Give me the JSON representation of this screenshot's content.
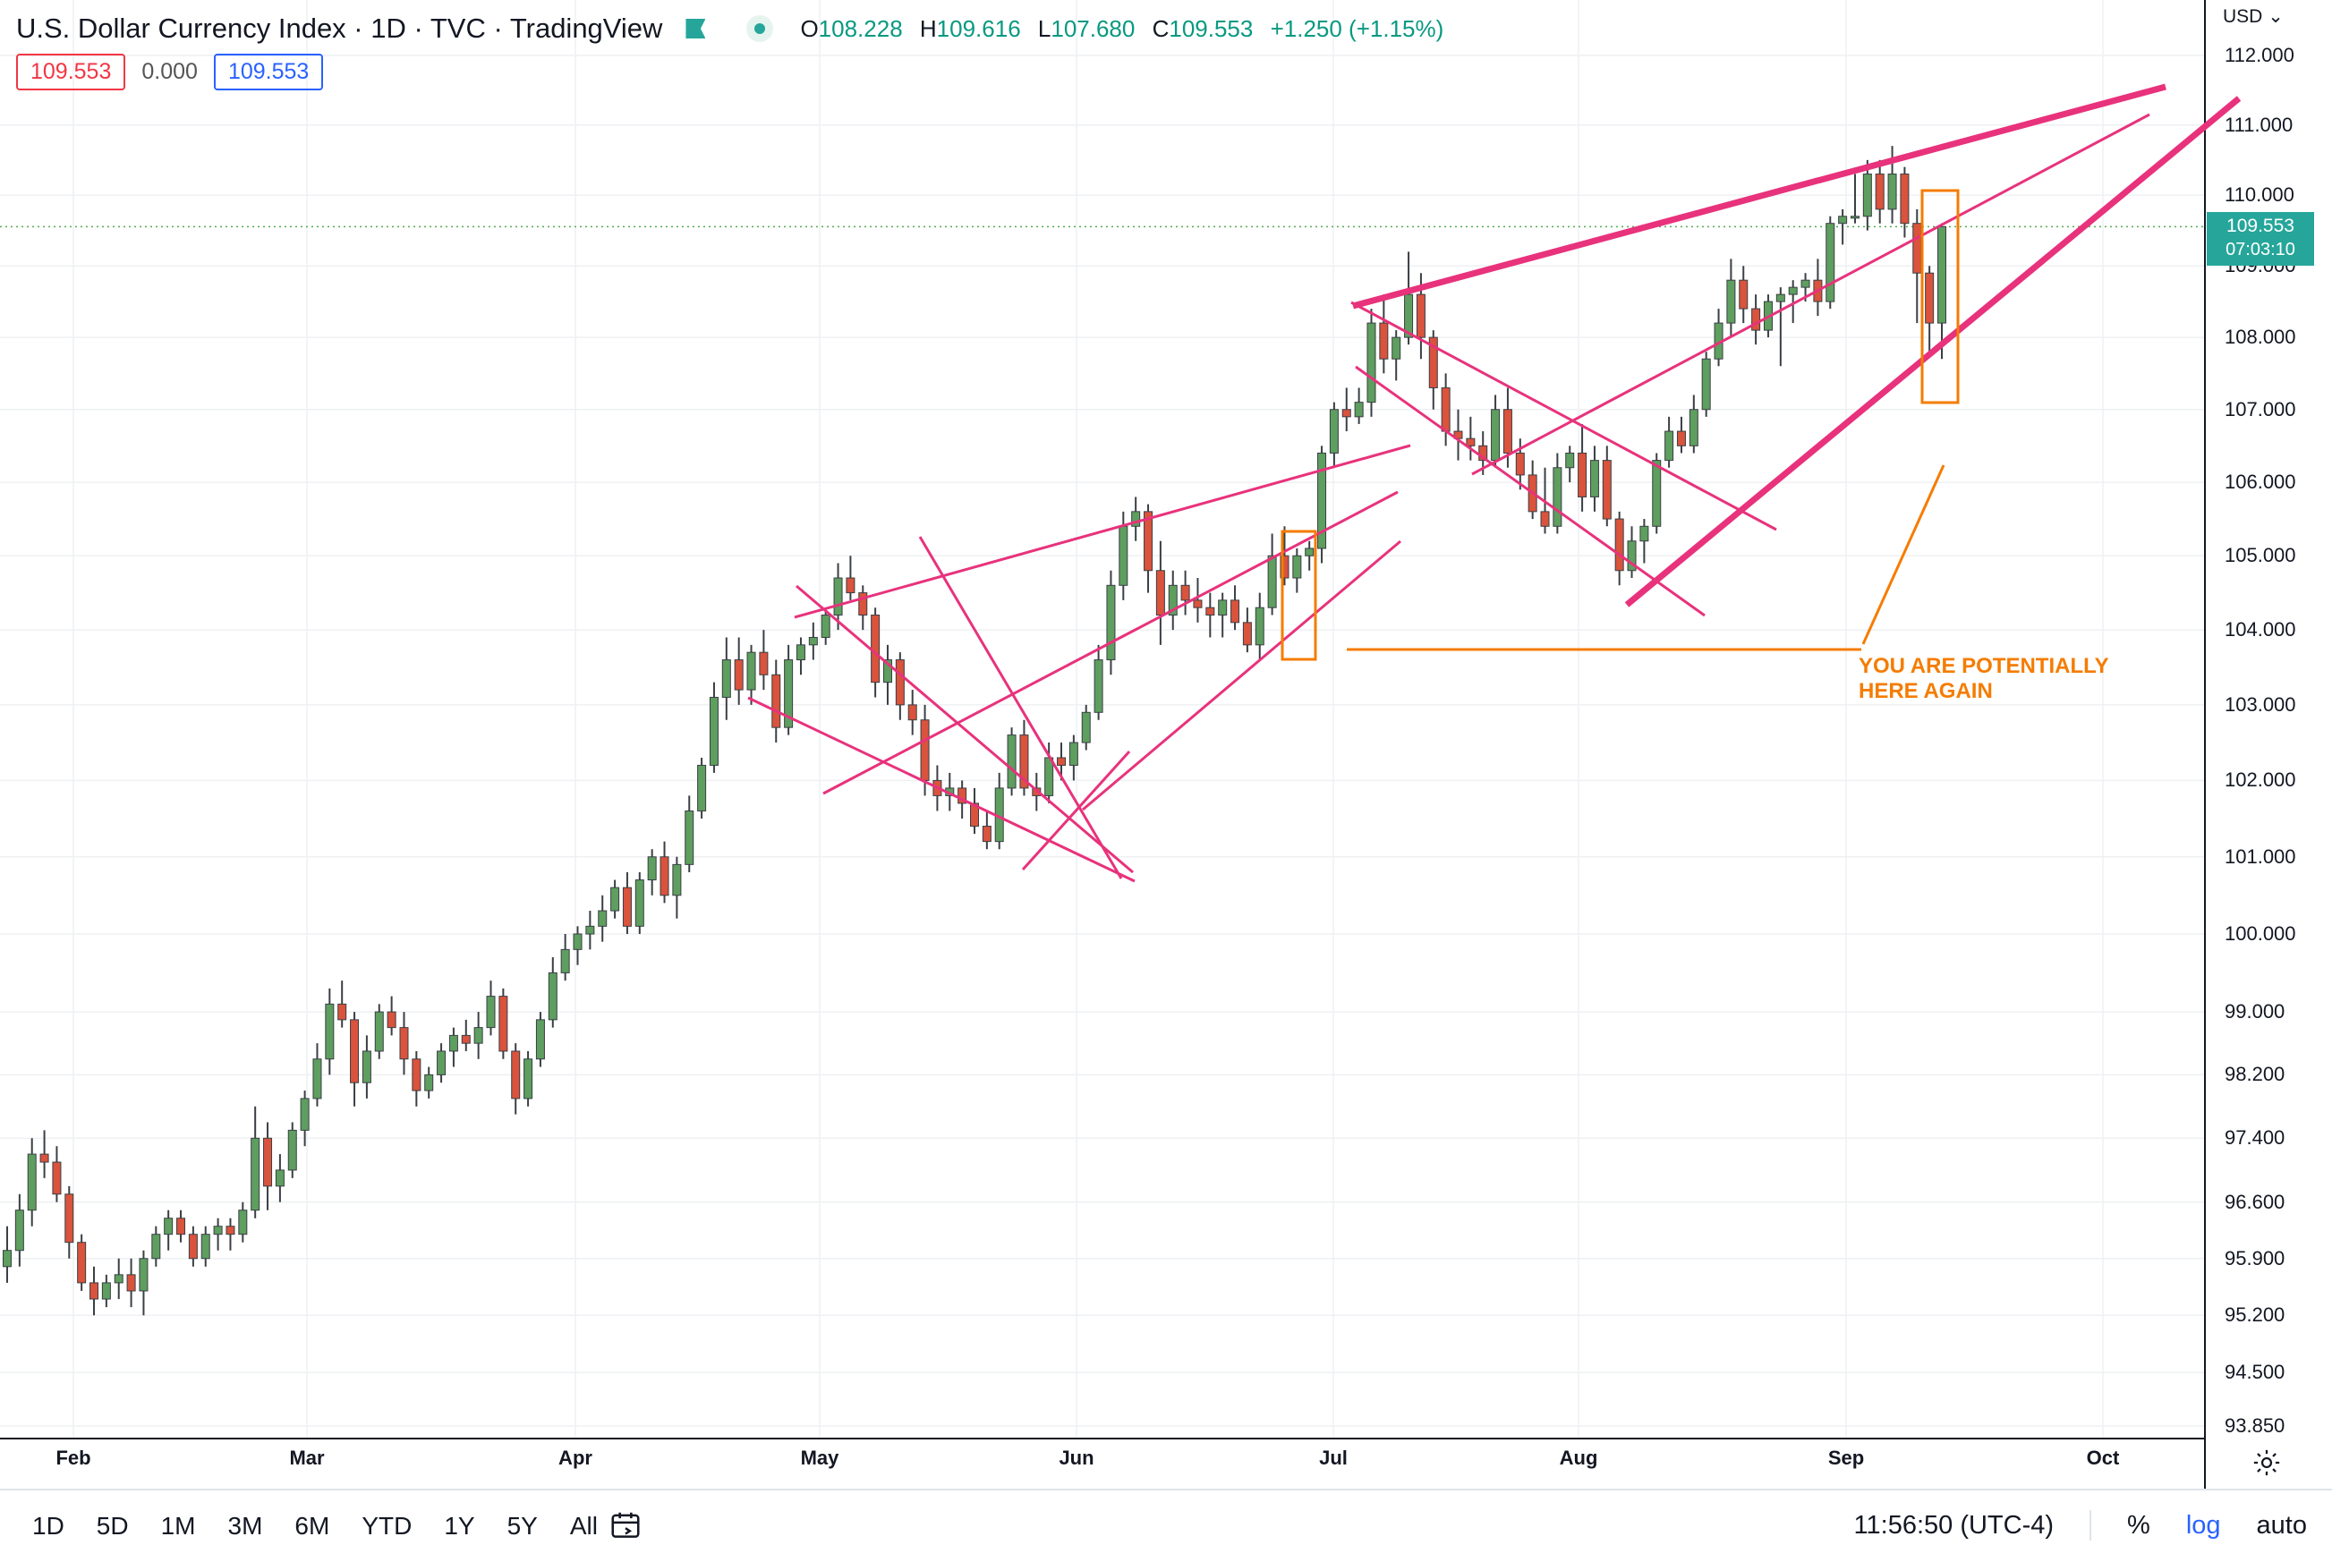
{
  "header": {
    "title": "U.S. Dollar Currency Index · 1D · TVC · TradingView",
    "ohlc": {
      "o_label": "O",
      "o": "108.228",
      "h_label": "H",
      "h": "109.616",
      "l_label": "L",
      "l": "107.680",
      "c_label": "C",
      "c": "109.553",
      "change": "+1.250 (+1.15%)"
    },
    "price_box_left": "109.553",
    "spread": "0.000",
    "price_box_right": "109.553"
  },
  "price_scale": {
    "currency": "USD",
    "last_price": "109.553",
    "countdown": "07:03:10"
  },
  "annotation": {
    "line1": "YOU ARE POTENTIALLY",
    "line2": "HERE AGAIN"
  },
  "footer": {
    "ranges": [
      "1D",
      "5D",
      "1M",
      "3M",
      "6M",
      "YTD",
      "1Y",
      "5Y",
      "All"
    ],
    "time": "11:56:50 (UTC-4)",
    "percent": "%",
    "log": "log",
    "auto": "auto"
  },
  "colors": {
    "up": "#26a69a",
    "up_body": "#5e9e5f",
    "down": "#d9533d",
    "trendline": "#e8327c",
    "annotation": "#f57c00",
    "last_price_badge": "#26a69a"
  },
  "icons": [
    "flag-icon",
    "status-dot-icon",
    "currency-dropdown-icon",
    "gear-icon",
    "calendar-icon"
  ],
  "chart_data": {
    "type": "candlestick",
    "y_scale": "log",
    "y_ticks": [
      "112.000",
      "111.000",
      "110.000",
      "109.000",
      "108.000",
      "107.000",
      "106.000",
      "105.000",
      "104.000",
      "103.000",
      "102.000",
      "101.000",
      "100.000",
      "99.000",
      "98.200",
      "97.400",
      "96.600",
      "95.900",
      "95.200",
      "94.500",
      "93.850"
    ],
    "x_ticks": [
      "Feb",
      "Mar",
      "Apr",
      "May",
      "Jun",
      "Jul",
      "Aug",
      "Sep",
      "Oct"
    ],
    "grid": true,
    "last_price": 109.553,
    "series": [
      {
        "name": "U.S. Dollar Currency Index",
        "ohlc": [
          [
            95.8,
            96.3,
            95.6,
            96.0
          ],
          [
            96.0,
            96.7,
            95.8,
            96.5
          ],
          [
            96.5,
            97.4,
            96.3,
            97.2
          ],
          [
            97.2,
            97.5,
            96.9,
            97.1
          ],
          [
            97.1,
            97.3,
            96.6,
            96.7
          ],
          [
            96.7,
            96.8,
            95.9,
            96.1
          ],
          [
            96.1,
            96.2,
            95.5,
            95.6
          ],
          [
            95.6,
            95.8,
            95.2,
            95.4
          ],
          [
            95.4,
            95.7,
            95.3,
            95.6
          ],
          [
            95.6,
            95.9,
            95.4,
            95.7
          ],
          [
            95.7,
            95.9,
            95.3,
            95.5
          ],
          [
            95.5,
            96.0,
            95.2,
            95.9
          ],
          [
            95.9,
            96.3,
            95.8,
            96.2
          ],
          [
            96.2,
            96.5,
            96.0,
            96.4
          ],
          [
            96.4,
            96.5,
            96.1,
            96.2
          ],
          [
            96.2,
            96.3,
            95.8,
            95.9
          ],
          [
            95.9,
            96.3,
            95.8,
            96.2
          ],
          [
            96.2,
            96.4,
            96.0,
            96.3
          ],
          [
            96.3,
            96.4,
            96.0,
            96.2
          ],
          [
            96.2,
            96.6,
            96.1,
            96.5
          ],
          [
            96.5,
            97.8,
            96.4,
            97.4
          ],
          [
            97.4,
            97.6,
            96.5,
            96.8
          ],
          [
            96.8,
            97.2,
            96.6,
            97.0
          ],
          [
            97.0,
            97.6,
            96.9,
            97.5
          ],
          [
            97.5,
            98.0,
            97.3,
            97.9
          ],
          [
            97.9,
            98.6,
            97.8,
            98.4
          ],
          [
            98.4,
            99.3,
            98.2,
            99.1
          ],
          [
            99.1,
            99.4,
            98.8,
            98.9
          ],
          [
            98.9,
            99.0,
            97.8,
            98.1
          ],
          [
            98.1,
            98.7,
            97.9,
            98.5
          ],
          [
            98.5,
            99.1,
            98.4,
            99.0
          ],
          [
            99.0,
            99.2,
            98.7,
            98.8
          ],
          [
            98.8,
            99.0,
            98.2,
            98.4
          ],
          [
            98.4,
            98.5,
            97.8,
            98.0
          ],
          [
            98.0,
            98.3,
            97.9,
            98.2
          ],
          [
            98.2,
            98.6,
            98.1,
            98.5
          ],
          [
            98.5,
            98.8,
            98.3,
            98.7
          ],
          [
            98.7,
            98.9,
            98.5,
            98.6
          ],
          [
            98.6,
            99.0,
            98.4,
            98.8
          ],
          [
            98.8,
            99.4,
            98.7,
            99.2
          ],
          [
            99.2,
            99.3,
            98.4,
            98.5
          ],
          [
            98.5,
            98.6,
            97.7,
            97.9
          ],
          [
            97.9,
            98.5,
            97.8,
            98.4
          ],
          [
            98.4,
            99.0,
            98.3,
            98.9
          ],
          [
            98.9,
            99.7,
            98.8,
            99.5
          ],
          [
            99.5,
            100.0,
            99.4,
            99.8
          ],
          [
            99.8,
            100.1,
            99.6,
            100.0
          ],
          [
            100.0,
            100.3,
            99.8,
            100.1
          ],
          [
            100.1,
            100.5,
            99.9,
            100.3
          ],
          [
            100.3,
            100.7,
            100.2,
            100.6
          ],
          [
            100.6,
            100.8,
            100.0,
            100.1
          ],
          [
            100.1,
            100.8,
            100.0,
            100.7
          ],
          [
            100.7,
            101.1,
            100.5,
            101.0
          ],
          [
            101.0,
            101.2,
            100.4,
            100.5
          ],
          [
            100.5,
            101.0,
            100.2,
            100.9
          ],
          [
            100.9,
            101.8,
            100.8,
            101.6
          ],
          [
            101.6,
            102.3,
            101.5,
            102.2
          ],
          [
            102.2,
            103.3,
            102.1,
            103.1
          ],
          [
            103.1,
            103.9,
            102.8,
            103.6
          ],
          [
            103.6,
            103.9,
            103.0,
            103.2
          ],
          [
            103.2,
            103.8,
            103.0,
            103.7
          ],
          [
            103.7,
            104.0,
            103.2,
            103.4
          ],
          [
            103.4,
            103.6,
            102.5,
            102.7
          ],
          [
            102.7,
            103.8,
            102.6,
            103.6
          ],
          [
            103.6,
            103.9,
            103.4,
            103.8
          ],
          [
            103.8,
            104.1,
            103.6,
            103.9
          ],
          [
            103.9,
            104.3,
            103.8,
            104.2
          ],
          [
            104.2,
            104.9,
            104.0,
            104.7
          ],
          [
            104.7,
            105.0,
            104.4,
            104.5
          ],
          [
            104.5,
            104.6,
            104.0,
            104.2
          ],
          [
            104.2,
            104.3,
            103.1,
            103.3
          ],
          [
            103.3,
            103.8,
            103.0,
            103.6
          ],
          [
            103.6,
            103.7,
            102.8,
            103.0
          ],
          [
            103.0,
            103.2,
            102.6,
            102.8
          ],
          [
            102.8,
            103.0,
            101.8,
            102.0
          ],
          [
            102.0,
            102.2,
            101.6,
            101.8
          ],
          [
            101.8,
            102.1,
            101.6,
            101.9
          ],
          [
            101.9,
            102.0,
            101.5,
            101.7
          ],
          [
            101.7,
            101.9,
            101.3,
            101.4
          ],
          [
            101.4,
            101.6,
            101.1,
            101.2
          ],
          [
            101.2,
            102.1,
            101.1,
            101.9
          ],
          [
            101.9,
            102.7,
            101.8,
            102.6
          ],
          [
            102.6,
            102.8,
            101.8,
            101.9
          ],
          [
            101.9,
            102.1,
            101.6,
            101.8
          ],
          [
            101.8,
            102.5,
            101.7,
            102.3
          ],
          [
            102.3,
            102.5,
            102.0,
            102.2
          ],
          [
            102.2,
            102.6,
            102.0,
            102.5
          ],
          [
            102.5,
            103.0,
            102.4,
            102.9
          ],
          [
            102.9,
            103.8,
            102.8,
            103.6
          ],
          [
            103.6,
            104.8,
            103.4,
            104.6
          ],
          [
            104.6,
            105.6,
            104.4,
            105.4
          ],
          [
            105.4,
            105.8,
            105.2,
            105.6
          ],
          [
            105.6,
            105.7,
            104.5,
            104.8
          ],
          [
            104.8,
            105.2,
            103.8,
            104.2
          ],
          [
            104.2,
            104.8,
            104.0,
            104.6
          ],
          [
            104.6,
            104.8,
            104.2,
            104.4
          ],
          [
            104.4,
            104.7,
            104.1,
            104.3
          ],
          [
            104.3,
            104.5,
            103.9,
            104.2
          ],
          [
            104.2,
            104.5,
            103.9,
            104.4
          ],
          [
            104.4,
            104.6,
            104.0,
            104.1
          ],
          [
            104.1,
            104.3,
            103.7,
            103.8
          ],
          [
            103.8,
            104.5,
            103.6,
            104.3
          ],
          [
            104.3,
            105.3,
            104.2,
            105.0
          ],
          [
            105.0,
            105.4,
            104.6,
            104.7
          ],
          [
            104.7,
            105.1,
            104.5,
            105.0
          ],
          [
            105.0,
            105.2,
            104.8,
            105.1
          ],
          [
            105.1,
            106.5,
            104.9,
            106.4
          ],
          [
            106.4,
            107.1,
            106.2,
            107.0
          ],
          [
            107.0,
            107.3,
            106.7,
            106.9
          ],
          [
            106.9,
            107.3,
            106.8,
            107.1
          ],
          [
            107.1,
            108.4,
            106.9,
            108.2
          ],
          [
            108.2,
            108.6,
            107.5,
            107.7
          ],
          [
            107.7,
            108.1,
            107.4,
            108.0
          ],
          [
            108.0,
            109.2,
            107.9,
            108.6
          ],
          [
            108.6,
            108.9,
            107.7,
            108.0
          ],
          [
            108.0,
            108.1,
            107.0,
            107.3
          ],
          [
            107.3,
            107.5,
            106.5,
            106.7
          ],
          [
            106.7,
            107.0,
            106.3,
            106.6
          ],
          [
            106.6,
            106.9,
            106.3,
            106.5
          ],
          [
            106.5,
            106.7,
            106.1,
            106.3
          ],
          [
            106.3,
            107.2,
            106.2,
            107.0
          ],
          [
            107.0,
            107.3,
            106.2,
            106.4
          ],
          [
            106.4,
            106.6,
            105.9,
            106.1
          ],
          [
            106.1,
            106.3,
            105.5,
            105.6
          ],
          [
            105.6,
            106.2,
            105.3,
            105.4
          ],
          [
            105.4,
            106.4,
            105.3,
            106.2
          ],
          [
            106.2,
            106.5,
            106.0,
            106.4
          ],
          [
            106.4,
            106.8,
            105.6,
            105.8
          ],
          [
            105.8,
            106.5,
            105.6,
            106.3
          ],
          [
            106.3,
            106.5,
            105.4,
            105.5
          ],
          [
            105.5,
            105.6,
            104.6,
            104.8
          ],
          [
            104.8,
            105.4,
            104.7,
            105.2
          ],
          [
            105.2,
            105.5,
            104.9,
            105.4
          ],
          [
            105.4,
            106.4,
            105.3,
            106.3
          ],
          [
            106.3,
            106.9,
            106.2,
            106.7
          ],
          [
            106.7,
            106.9,
            106.4,
            106.5
          ],
          [
            106.5,
            107.2,
            106.4,
            107.0
          ],
          [
            107.0,
            107.8,
            106.9,
            107.7
          ],
          [
            107.7,
            108.4,
            107.6,
            108.2
          ],
          [
            108.2,
            109.1,
            108.0,
            108.8
          ],
          [
            108.8,
            109.0,
            108.2,
            108.4
          ],
          [
            108.4,
            108.6,
            107.9,
            108.1
          ],
          [
            108.1,
            108.6,
            108.0,
            108.5
          ],
          [
            108.5,
            108.7,
            107.6,
            108.6
          ],
          [
            108.6,
            108.8,
            108.2,
            108.7
          ],
          [
            108.7,
            108.9,
            108.5,
            108.8
          ],
          [
            108.8,
            109.1,
            108.3,
            108.5
          ],
          [
            108.5,
            109.7,
            108.4,
            109.6
          ],
          [
            109.6,
            109.8,
            109.3,
            109.7
          ],
          [
            109.7,
            110.3,
            109.6,
            109.7
          ],
          [
            109.7,
            110.5,
            109.5,
            110.3
          ],
          [
            110.3,
            110.5,
            109.6,
            109.8
          ],
          [
            109.8,
            110.7,
            109.6,
            110.3
          ],
          [
            110.3,
            110.4,
            109.4,
            109.6
          ],
          [
            109.6,
            109.8,
            108.2,
            108.9
          ],
          [
            108.9,
            109.0,
            107.8,
            108.2
          ],
          [
            108.2,
            109.6,
            107.7,
            109.553
          ]
        ]
      }
    ]
  }
}
